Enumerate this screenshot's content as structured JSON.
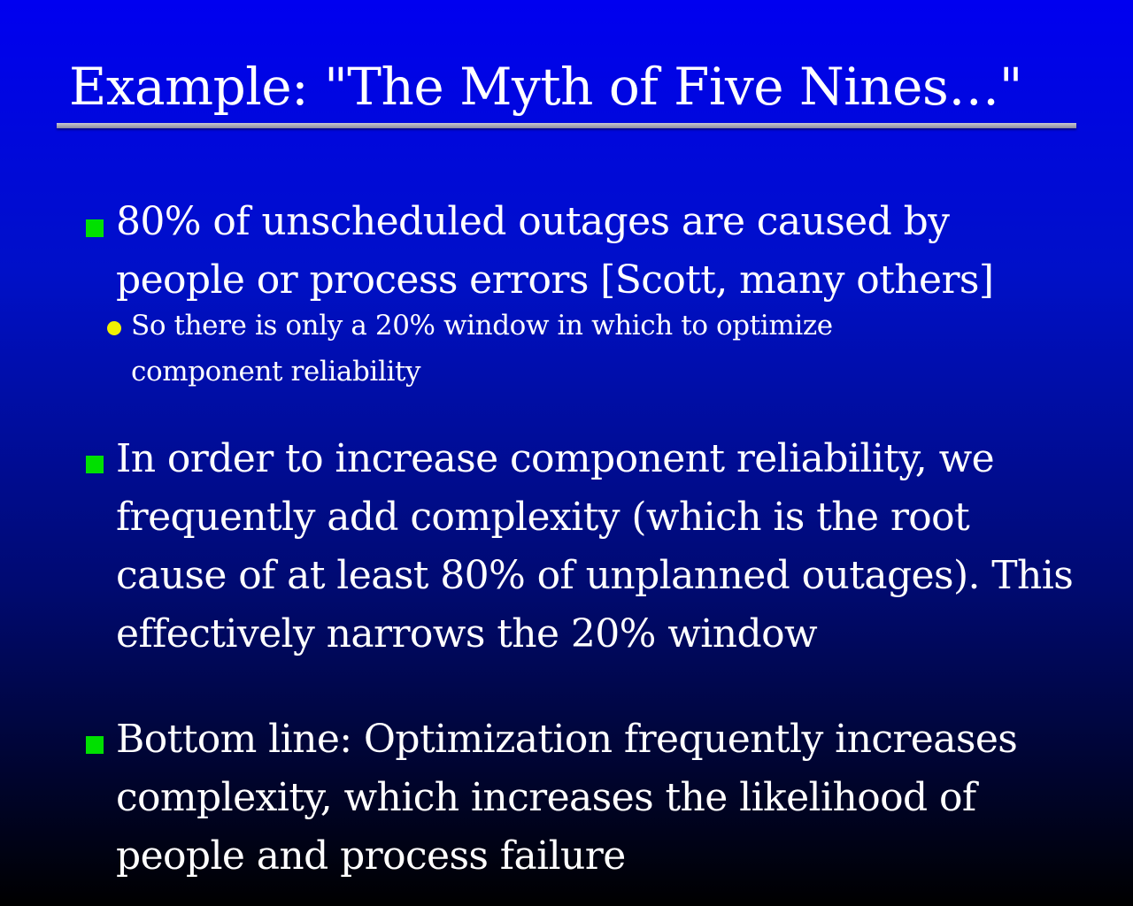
{
  "slide": {
    "title": "Example: \"The Myth of Five Nines…\"",
    "bullets": [
      {
        "text": "80% of unscheduled outages are caused by people or process errors [Scott, many others]",
        "sub_bullets": [
          {
            "text": "So there is only a 20% window in which to optimize component reliability"
          }
        ]
      },
      {
        "text": "In order to increase component reliability, we frequently add complexity (which is the root cause of at least 80% of unplanned outages). This effectively narrows the 20% window"
      },
      {
        "text": "Bottom line: Optimization frequently increases complexity, which increases the likelihood of people and process failure"
      }
    ]
  },
  "colors": {
    "background_top": "#0000f0",
    "background_bottom": "#000000",
    "text": "#ffffff",
    "bullet_marker": "#00e000",
    "sub_bullet_marker": "#f0f000",
    "title_rule": "#a0a0b0"
  },
  "icons": {
    "bullet": "green-square-icon",
    "sub_bullet": "yellow-dot-icon"
  }
}
